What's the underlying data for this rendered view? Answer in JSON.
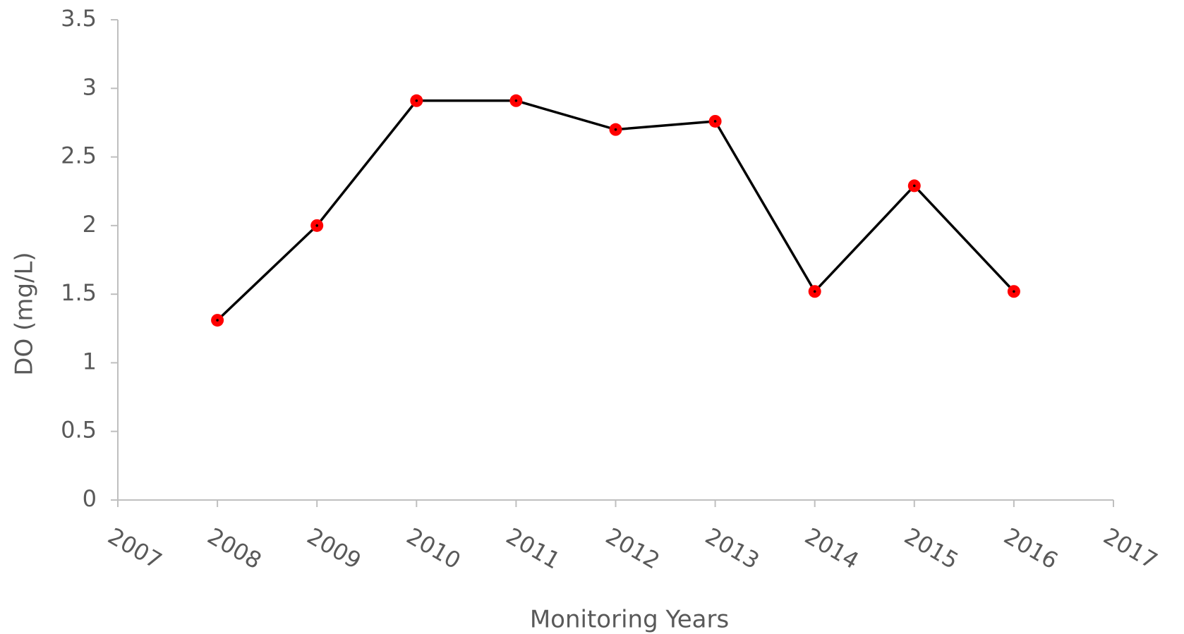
{
  "chart_data": {
    "type": "line",
    "xlabel": "Monitoring Years",
    "ylabel": "DO (mg/L)",
    "x": [
      2008,
      2009,
      2010,
      2011,
      2012,
      2013,
      2014,
      2015,
      2016
    ],
    "values": [
      1.31,
      2.0,
      2.91,
      2.91,
      2.7,
      2.76,
      1.52,
      2.29,
      1.52
    ],
    "color": "#000000",
    "marker_color": "#ff0000",
    "xlim": [
      2007,
      2017
    ],
    "xticks": [
      2007,
      2008,
      2009,
      2010,
      2011,
      2012,
      2013,
      2014,
      2015,
      2016,
      2017
    ],
    "ylim": [
      0,
      3.5
    ],
    "yticks": [
      0,
      0.5,
      1,
      1.5,
      2,
      2.5,
      3,
      3.5
    ],
    "grid": false
  }
}
